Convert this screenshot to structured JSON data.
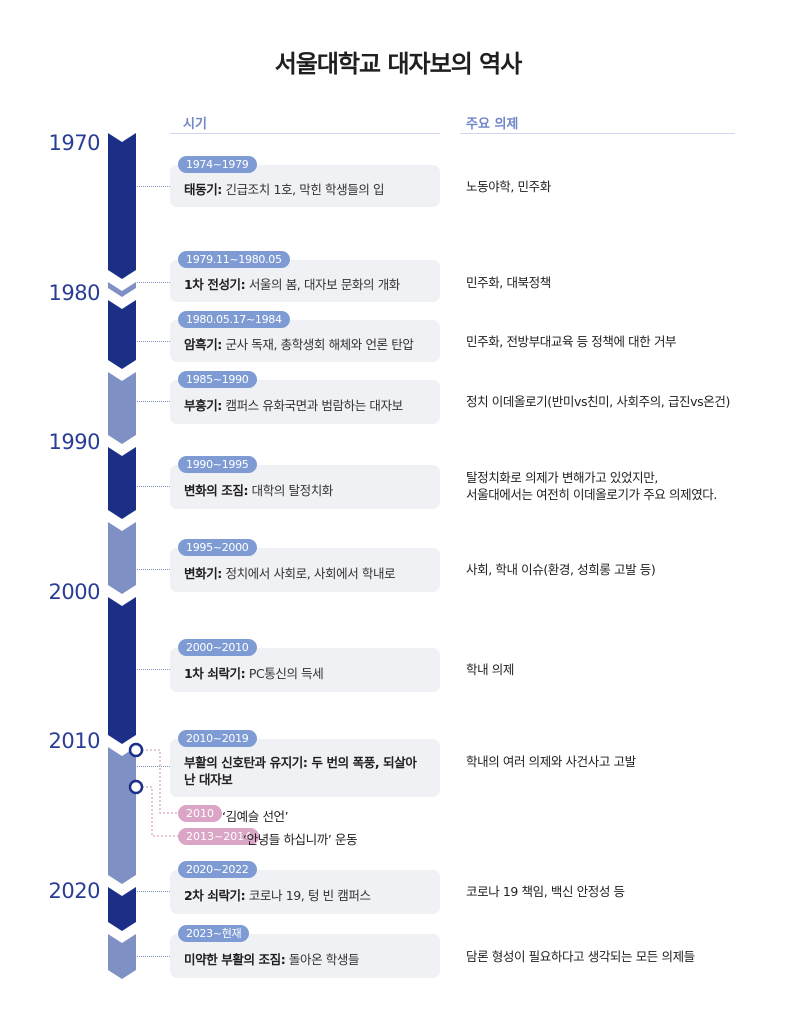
{
  "title": "서울대학교 대자보의 역사",
  "columns": {
    "period": "시기",
    "agenda": "주요 의제"
  },
  "decades": [
    "1970",
    "1980",
    "1990",
    "2000",
    "2010",
    "2020"
  ],
  "colors": {
    "dark": "#1b2f87",
    "light": "#7f90c4",
    "badge": "#7f9bd4",
    "pink": "#dba5c6",
    "card": "#f0f1f5"
  },
  "rows": [
    {
      "range": "1974~1979",
      "label": "태동기:",
      "desc": " 긴급조치 1호, 막힌 학생들의 입",
      "agenda": "노동야학, 민주화"
    },
    {
      "range": "1979.11~1980.05",
      "label": "1차 전성기:",
      "desc": " 서울의 봄, 대자보 문화의 개화",
      "agenda": "민주화, 대북정책"
    },
    {
      "range": "1980.05.17~1984",
      "label": "암흑기:",
      "desc": " 군사 독재, 총학생회 해체와 언론 탄압",
      "agenda": "민주화, 전방부대교육 등 정책에 대한 거부"
    },
    {
      "range": "1985~1990",
      "label": "부흥기:",
      "desc": " 캠퍼스 유화국면과 범람하는 대자보",
      "agenda": "정치 이데올로기(반미vs친미, 사회주의, 급진vs온건)"
    },
    {
      "range": "1990~1995",
      "label": "변화의 조짐:",
      "desc": " 대학의 탈정치화",
      "agenda": "탈정치화로 의제가 변해가고 있었지만,\n서울대에서는 여전히 이데올로기가 주요 의제였다."
    },
    {
      "range": "1995~2000",
      "label": "변화기:",
      "desc": " 정치에서 사회로, 사회에서 학내로",
      "agenda": "사회, 학내 이슈(환경, 성희롱 고발 등)"
    },
    {
      "range": "2000~2010",
      "label": "1차 쇠락기:",
      "desc": " PC통신의 득세",
      "agenda": "학내 의제"
    },
    {
      "range": "2010~2019",
      "label": "부활의 신호탄과 유지기:",
      "desc": " 두 번의 폭풍, 되살아난 대자보",
      "agenda": "학내의 여러 의제와 사건사고 고발"
    },
    {
      "range": "2020~2022",
      "label": "2차 쇠락기:",
      "desc": " 코로나 19, 텅 빈 캠퍼스",
      "agenda": "코로나 19 책임, 백신 안정성 등"
    },
    {
      "range": "2023~현재",
      "label": "미약한 부활의 조짐:",
      "desc": " 돌아온 학생들",
      "agenda": "담론 형성이 필요하다고 생각되는 모든 의제들"
    }
  ],
  "events": [
    {
      "range": "2010",
      "text": "‘김예슬 선언’"
    },
    {
      "range": "2013~2014",
      "text": "‘안녕들 하십니까’ 운동"
    }
  ]
}
